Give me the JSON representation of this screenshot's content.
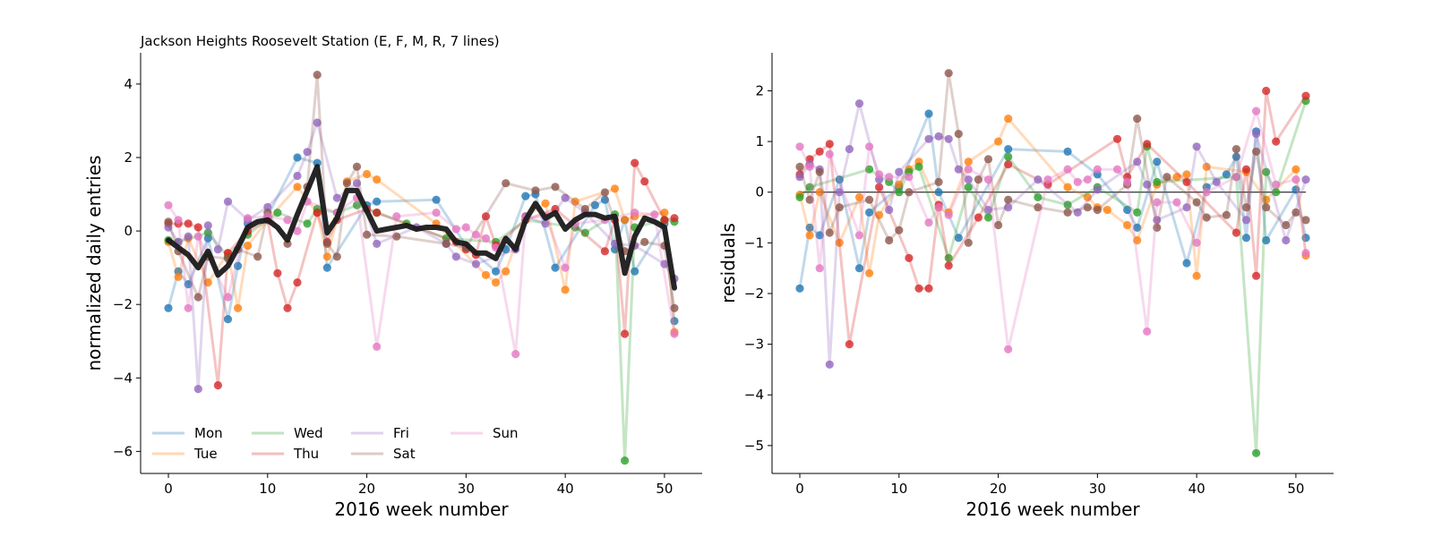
{
  "chart_data": [
    {
      "type": "line",
      "title": "Jackson Heights Roosevelt Station (E, F, M, R, 7 lines)",
      "xlabel": "2016 week number",
      "ylabel": "normalized daily entries",
      "xlim": [
        -2.8,
        53.8
      ],
      "ylim": [
        -6.6,
        4.85
      ],
      "xticks": [
        0,
        10,
        20,
        30,
        40,
        50
      ],
      "yticks": [
        -6,
        -4,
        -2,
        0,
        2,
        4
      ],
      "tick_labels_x": [
        "0",
        "10",
        "20",
        "30",
        "40",
        "50"
      ],
      "tick_labels_y": [
        "−6",
        "−4",
        "−2",
        "0",
        "2",
        "4"
      ],
      "legend_position": "lower-left",
      "legend_columns": 4,
      "series": [
        {
          "name": "Mon",
          "color": "#1f77b4",
          "x": [
            0,
            1,
            2,
            4,
            6,
            7,
            8,
            10,
            13,
            15,
            16,
            20,
            21,
            27,
            30,
            33,
            34,
            36,
            37,
            39,
            43,
            44,
            45,
            46,
            47,
            50,
            51
          ],
          "y": [
            -2.1,
            -1.1,
            -1.45,
            -0.2,
            -2.4,
            -0.95,
            0.2,
            0.4,
            2.0,
            1.85,
            -1.0,
            0.7,
            0.8,
            0.85,
            -0.4,
            -1.1,
            -0.5,
            0.95,
            1.0,
            -1.0,
            0.7,
            0.85,
            -0.5,
            0.3,
            -1.1,
            0.2,
            -2.45
          ]
        },
        {
          "name": "Tue",
          "color": "#ff7f0e",
          "x": [
            0,
            1,
            2,
            4,
            6,
            7,
            8,
            10,
            13,
            15,
            16,
            18,
            20,
            21,
            27,
            32,
            33,
            34,
            36,
            38,
            40,
            41,
            45,
            46,
            47,
            50,
            51
          ],
          "y": [
            -0.3,
            -1.25,
            -0.2,
            -1.4,
            -0.6,
            -2.1,
            -0.4,
            0.3,
            1.2,
            0.5,
            -0.7,
            1.35,
            1.55,
            1.4,
            0.2,
            -1.2,
            -1.4,
            -1.1,
            0.4,
            0.75,
            -1.6,
            0.8,
            1.15,
            0.3,
            0.4,
            0.5,
            -2.75
          ]
        },
        {
          "name": "Wed",
          "color": "#2ca02c",
          "x": [
            0,
            1,
            4,
            6,
            8,
            10,
            11,
            14,
            15,
            17,
            19,
            21,
            24,
            28,
            33,
            36,
            41,
            42,
            45,
            46,
            47,
            50,
            51
          ],
          "y": [
            -0.25,
            -0.3,
            -0.05,
            -0.7,
            -0.1,
            0.3,
            0.5,
            0.2,
            0.6,
            0.5,
            0.7,
            0.5,
            0.2,
            -0.2,
            -0.3,
            0.3,
            0.1,
            -0.05,
            0.45,
            -6.25,
            0.1,
            0.3,
            0.25
          ]
        },
        {
          "name": "Thu",
          "color": "#d62728",
          "x": [
            0,
            1,
            2,
            3,
            5,
            6,
            8,
            10,
            11,
            12,
            13,
            15,
            16,
            17,
            20,
            21,
            29,
            30,
            31,
            32,
            33,
            36,
            39,
            44,
            45,
            46,
            47,
            48,
            50,
            51
          ],
          "y": [
            0.2,
            0.2,
            0.2,
            0.1,
            -4.2,
            -0.6,
            0.0,
            0.3,
            -1.15,
            -2.1,
            -1.4,
            0.5,
            -0.3,
            0.3,
            0.6,
            0.5,
            -0.3,
            -0.5,
            -0.65,
            0.4,
            -0.4,
            0.3,
            0.6,
            -0.55,
            0.3,
            -2.8,
            1.85,
            1.35,
            0.3,
            0.35
          ]
        },
        {
          "name": "Fri",
          "color": "#9467bd",
          "x": [
            0,
            1,
            2,
            3,
            4,
            5,
            6,
            8,
            10,
            13,
            14,
            15,
            17,
            19,
            21,
            25,
            28,
            29,
            31,
            35,
            36,
            38,
            40,
            42,
            45,
            47,
            50,
            51
          ],
          "y": [
            0.1,
            -0.3,
            -0.15,
            -4.3,
            0.15,
            -0.5,
            0.8,
            0.3,
            0.65,
            1.5,
            2.15,
            2.95,
            0.9,
            1.3,
            -0.35,
            0.1,
            -0.35,
            -0.7,
            -0.9,
            -0.5,
            0.4,
            0.2,
            0.9,
            0.5,
            -0.35,
            -0.4,
            -0.9,
            -1.3
          ]
        },
        {
          "name": "Sat",
          "color": "#8c564b",
          "x": [
            0,
            1,
            3,
            4,
            6,
            7,
            9,
            10,
            12,
            14,
            15,
            16,
            17,
            18,
            19,
            20,
            23,
            28,
            30,
            34,
            37,
            39,
            42,
            44,
            46,
            48,
            50,
            51
          ],
          "y": [
            0.25,
            -0.55,
            -1.8,
            -0.7,
            -0.75,
            -0.5,
            -0.7,
            0.5,
            -0.35,
            1.2,
            4.25,
            -0.35,
            -0.7,
            1.3,
            1.75,
            -0.1,
            -0.15,
            -0.35,
            -0.45,
            1.3,
            1.1,
            1.2,
            0.6,
            1.05,
            -0.55,
            -0.3,
            -0.4,
            -2.1
          ]
        },
        {
          "name": "Sun",
          "color": "#e377c2",
          "x": [
            0,
            1,
            2,
            3,
            6,
            8,
            10,
            12,
            13,
            14,
            17,
            19,
            21,
            23,
            27,
            29,
            30,
            31,
            32,
            33,
            35,
            36,
            38,
            40,
            41,
            44,
            47,
            49,
            51
          ],
          "y": [
            0.7,
            0.3,
            -2.1,
            -0.15,
            -1.8,
            0.35,
            0.4,
            0.3,
            0.0,
            0.8,
            0.5,
            0.9,
            -3.15,
            0.4,
            0.5,
            0.05,
            0.1,
            -0.1,
            -0.2,
            -0.45,
            -3.35,
            0.35,
            0.4,
            -1.0,
            0.2,
            0.3,
            0.5,
            0.45,
            -2.8
          ]
        },
        {
          "name": "",
          "color": "#1a1a1a",
          "x": [
            0,
            1,
            2,
            3,
            4,
            5,
            6,
            7,
            8,
            9,
            10,
            11,
            12,
            13,
            14,
            15,
            16,
            17,
            18,
            19,
            20,
            21,
            22,
            23,
            24,
            25,
            26,
            27,
            28,
            29,
            30,
            31,
            32,
            33,
            34,
            35,
            36,
            37,
            38,
            39,
            40,
            41,
            42,
            43,
            44,
            45,
            46,
            47,
            48,
            49,
            50,
            51
          ],
          "y": [
            -0.25,
            -0.45,
            -0.65,
            -1.0,
            -0.55,
            -1.2,
            -0.95,
            -0.45,
            0.1,
            0.25,
            0.3,
            0.1,
            -0.25,
            0.45,
            1.1,
            1.75,
            -0.05,
            0.35,
            1.1,
            1.1,
            0.55,
            0.0,
            0.05,
            0.1,
            0.15,
            0.05,
            0.1,
            0.1,
            0.05,
            -0.3,
            -0.35,
            -0.6,
            -0.6,
            -0.75,
            -0.2,
            -0.5,
            0.3,
            0.75,
            0.35,
            0.5,
            0.05,
            0.3,
            0.45,
            0.45,
            0.35,
            0.4,
            -1.15,
            -0.15,
            0.35,
            0.25,
            0.1,
            -1.55
          ]
        }
      ]
    },
    {
      "type": "scatter",
      "title": "",
      "xlabel": "2016 week number",
      "ylabel": "residuals",
      "xlim": [
        -2.8,
        53.8
      ],
      "ylim": [
        -5.55,
        2.75
      ],
      "xticks": [
        0,
        10,
        20,
        30,
        40,
        50
      ],
      "yticks": [
        -5,
        -4,
        -3,
        -2,
        -1,
        0,
        1,
        2
      ],
      "tick_labels_x": [
        "0",
        "10",
        "20",
        "30",
        "40",
        "50"
      ],
      "tick_labels_y": [
        "−5",
        "−4",
        "−3",
        "−2",
        "−1",
        "0",
        "1",
        "2"
      ],
      "zero_line": {
        "x": [
          0,
          51
        ],
        "y": 0
      },
      "series": [
        {
          "name": "Mon",
          "color": "#1f77b4",
          "x": [
            0,
            1,
            2,
            4,
            6,
            7,
            10,
            13,
            14,
            16,
            21,
            27,
            30,
            33,
            34,
            36,
            39,
            41,
            43,
            44,
            45,
            46,
            47,
            50,
            51
          ],
          "y": [
            -1.9,
            -0.7,
            -0.85,
            0.25,
            -1.5,
            -0.4,
            0.1,
            1.55,
            0.0,
            -0.9,
            0.85,
            0.8,
            0.35,
            -0.35,
            -0.7,
            0.6,
            -1.4,
            0.1,
            0.35,
            0.7,
            -0.9,
            1.2,
            -0.95,
            0.05,
            -0.9
          ]
        },
        {
          "name": "Tue",
          "color": "#ff7f0e",
          "x": [
            0,
            1,
            2,
            4,
            6,
            7,
            8,
            10,
            11,
            12,
            14,
            15,
            17,
            20,
            21,
            27,
            29,
            30,
            31,
            33,
            34,
            36,
            38,
            39,
            40,
            41,
            45,
            47,
            50,
            51
          ],
          "y": [
            -0.05,
            -0.85,
            0.0,
            -1.0,
            -0.1,
            -1.6,
            -0.45,
            0.15,
            0.45,
            0.6,
            -0.3,
            -0.4,
            0.6,
            1.0,
            1.45,
            0.1,
            -0.1,
            -0.3,
            -0.35,
            -0.65,
            -0.95,
            0.15,
            0.3,
            0.35,
            -1.65,
            0.5,
            0.4,
            -0.15,
            0.45,
            -1.25
          ]
        },
        {
          "name": "Wed",
          "color": "#2ca02c",
          "x": [
            0,
            1,
            7,
            9,
            10,
            11,
            12,
            15,
            17,
            19,
            21,
            24,
            27,
            30,
            34,
            35,
            36,
            44,
            46,
            47,
            48,
            51
          ],
          "y": [
            -0.1,
            0.1,
            0.45,
            0.2,
            0.0,
            0.4,
            0.5,
            -1.3,
            0.1,
            -0.5,
            0.7,
            -0.1,
            -0.25,
            0.1,
            -0.4,
            0.9,
            0.2,
            0.3,
            -5.15,
            0.4,
            0.0,
            1.8
          ]
        },
        {
          "name": "Thu",
          "color": "#d62728",
          "x": [
            0,
            1,
            2,
            3,
            5,
            8,
            11,
            12,
            13,
            14,
            15,
            18,
            21,
            25,
            32,
            33,
            35,
            39,
            44,
            45,
            46,
            47,
            48,
            51
          ],
          "y": [
            0.35,
            0.65,
            0.8,
            0.95,
            -3.0,
            0.1,
            -1.3,
            -1.9,
            -1.9,
            -0.25,
            -1.45,
            -0.5,
            0.55,
            0.15,
            1.05,
            0.3,
            0.95,
            0.2,
            -0.8,
            0.45,
            -1.65,
            2.0,
            1.0,
            1.9
          ]
        },
        {
          "name": "Fri",
          "color": "#9467bd",
          "x": [
            0,
            1,
            2,
            3,
            4,
            5,
            6,
            8,
            9,
            10,
            13,
            14,
            15,
            16,
            17,
            19,
            21,
            24,
            28,
            30,
            34,
            35,
            36,
            39,
            40,
            42,
            45,
            46,
            49,
            51
          ],
          "y": [
            0.3,
            0.55,
            0.45,
            -3.4,
            0.0,
            0.85,
            1.75,
            0.25,
            -0.35,
            0.4,
            1.05,
            1.1,
            1.05,
            0.45,
            0.25,
            -0.35,
            -0.3,
            0.25,
            -0.4,
            0.05,
            0.6,
            0.15,
            -0.55,
            -0.3,
            0.9,
            0.2,
            -0.55,
            1.15,
            -0.95,
            0.25
          ]
        },
        {
          "name": "Sat",
          "color": "#8c564b",
          "x": [
            0,
            1,
            2,
            3,
            4,
            7,
            9,
            10,
            11,
            14,
            15,
            16,
            17,
            18,
            19,
            20,
            21,
            24,
            27,
            29,
            30,
            33,
            34,
            36,
            37,
            40,
            41,
            43,
            44,
            45,
            46,
            47,
            49,
            50,
            51
          ],
          "y": [
            0.5,
            -0.15,
            0.4,
            -0.8,
            -0.3,
            -0.15,
            -0.95,
            -0.75,
            0.0,
            0.2,
            2.35,
            1.15,
            -1.0,
            0.25,
            0.65,
            -0.65,
            -0.15,
            -0.3,
            -0.4,
            -0.3,
            -0.35,
            0.15,
            1.45,
            -0.7,
            0.3,
            -0.2,
            -0.5,
            -0.45,
            0.85,
            -0.3,
            0.8,
            -0.3,
            -0.65,
            -0.4,
            -0.55
          ]
        },
        {
          "name": "Sun",
          "color": "#e377c2",
          "x": [
            0,
            1,
            2,
            3,
            6,
            7,
            8,
            9,
            11,
            13,
            14,
            15,
            17,
            19,
            21,
            25,
            27,
            28,
            29,
            30,
            32,
            33,
            35,
            36,
            38,
            40,
            41,
            44,
            46,
            48,
            50,
            51
          ],
          "y": [
            0.9,
            0.5,
            -1.5,
            0.75,
            -0.85,
            0.9,
            0.35,
            0.3,
            0.3,
            -0.6,
            -0.3,
            -0.45,
            0.45,
            0.25,
            -3.1,
            0.25,
            0.45,
            0.2,
            0.25,
            0.45,
            0.45,
            0.2,
            -2.75,
            -0.2,
            -0.2,
            -1.0,
            0.0,
            0.3,
            1.6,
            0.15,
            0.25,
            -1.2
          ]
        }
      ]
    }
  ],
  "legend": [
    {
      "label": "Mon",
      "color": "#1f77b4"
    },
    {
      "label": "Tue",
      "color": "#ff7f0e"
    },
    {
      "label": "Wed",
      "color": "#2ca02c"
    },
    {
      "label": "Thu",
      "color": "#d62728"
    },
    {
      "label": "Fri",
      "color": "#9467bd"
    },
    {
      "label": "Sat",
      "color": "#8c564b"
    },
    {
      "label": "Sun",
      "color": "#e377c2"
    }
  ]
}
